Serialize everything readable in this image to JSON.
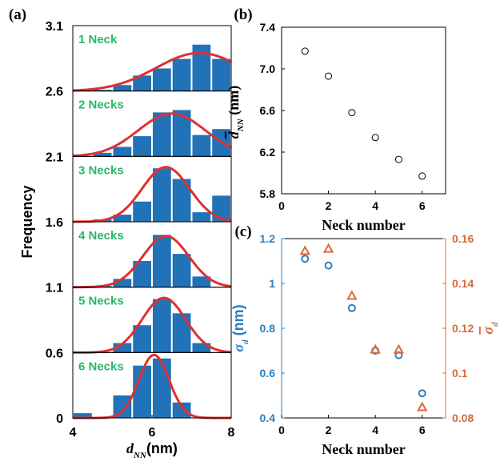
{
  "figure": {
    "panel_labels": [
      "(a)",
      "(b)",
      "(c)"
    ]
  },
  "colors": {
    "bar": "#2272b8",
    "fit": "#e03030",
    "label_green": "#2bb56a",
    "sigma_blue": "#2a7fc1",
    "sigma_orange": "#d8693a",
    "axis": "#000000"
  },
  "chart_data": [
    {
      "panel": "(a)",
      "type": "bar",
      "xlabel_base": "d",
      "xlabel_sub": "NN",
      "xlabel_unit": "(nm)",
      "ylabel": "Frequency",
      "xlim": [
        4,
        8
      ],
      "xticks": [
        "4",
        "6",
        "8"
      ],
      "ytick_labels": [
        "3.1",
        "2.6",
        "2.1",
        "1.6",
        "1.1",
        "0.6",
        "0"
      ],
      "bin_centers": [
        4.25,
        4.75,
        5.25,
        5.75,
        6.25,
        6.75,
        7.25,
        7.75
      ],
      "bin_width": 0.5,
      "subplots": [
        {
          "label": "1 Neck",
          "baseline": 2.6,
          "values": [
            0.0,
            0.01,
            0.05,
            0.13,
            0.19,
            0.27,
            0.39,
            0.27
          ],
          "fit": {
            "mu": 7.2,
            "sigma": 1.1,
            "peak": 0.32
          }
        },
        {
          "label": "2 Necks",
          "baseline": 2.1,
          "values": [
            0.0,
            0.03,
            0.08,
            0.17,
            0.37,
            0.39,
            0.18,
            0.23
          ],
          "fit": {
            "mu": 6.5,
            "sigma": 0.85,
            "peak": 0.36
          }
        },
        {
          "label": "3 Necks",
          "baseline": 1.6,
          "values": [
            0.0,
            0.02,
            0.06,
            0.17,
            0.45,
            0.36,
            0.08,
            0.22
          ],
          "fit": {
            "mu": 6.35,
            "sigma": 0.6,
            "peak": 0.46
          }
        },
        {
          "label": "4 Necks",
          "baseline": 1.1,
          "values": [
            0.0,
            0.01,
            0.07,
            0.22,
            0.44,
            0.28,
            0.09,
            0.0
          ],
          "fit": {
            "mu": 6.35,
            "sigma": 0.58,
            "peak": 0.43
          }
        },
        {
          "label": "5 Necks",
          "baseline": 0.6,
          "values": [
            0.0,
            0.0,
            0.08,
            0.23,
            0.45,
            0.33,
            0.08,
            0.0
          ],
          "fit": {
            "mu": 6.3,
            "sigma": 0.55,
            "peak": 0.46
          }
        },
        {
          "label": "6 Necks",
          "baseline": 0.0,
          "values": [
            0.04,
            0.0,
            0.19,
            0.44,
            0.5,
            0.13,
            0.0,
            0.0
          ],
          "fit": {
            "mu": 6.05,
            "sigma": 0.38,
            "peak": 0.53
          }
        }
      ]
    },
    {
      "panel": "(b)",
      "type": "scatter",
      "xlabel": "Neck number",
      "ylabel_base": "d",
      "ylabel_sub": "NN",
      "ylabel_unit": "(nm)",
      "xlim": [
        0,
        7
      ],
      "ylim": [
        5.8,
        7.4
      ],
      "xticks": [
        "0",
        "2",
        "4",
        "6"
      ],
      "yticks": [
        "5.8",
        "6.2",
        "6.6",
        "7.0",
        "7.4"
      ],
      "x": [
        1,
        2,
        3,
        4,
        5,
        6
      ],
      "y": [
        7.17,
        6.93,
        6.58,
        6.34,
        6.13,
        5.97
      ]
    },
    {
      "panel": "(c)",
      "type": "scatter",
      "xlabel": "Neck number",
      "xlim": [
        0,
        7
      ],
      "xticks": [
        "0",
        "2",
        "4",
        "6"
      ],
      "left_axis": {
        "label_base": "σ",
        "label_sub": "d",
        "label_unit": "(nm)",
        "ylim": [
          0.4,
          1.2
        ],
        "yticks": [
          "0.4",
          "0.6",
          "0.8",
          "1",
          "1.2"
        ]
      },
      "right_axis": {
        "label_base": "σ",
        "label_sub": "d",
        "ylim": [
          0.08,
          0.16
        ],
        "yticks": [
          "0.08",
          "0.1",
          "0.12",
          "0.14",
          "0.16"
        ]
      },
      "series": [
        {
          "axis": "left",
          "marker": "circle",
          "x": [
            1,
            2,
            3,
            4,
            5,
            6
          ],
          "y": [
            1.11,
            1.08,
            0.89,
            0.7,
            0.68,
            0.51
          ]
        },
        {
          "axis": "right",
          "marker": "triangle",
          "x": [
            1,
            2,
            3,
            4,
            5,
            6
          ],
          "y": [
            0.1545,
            0.1555,
            0.1345,
            0.1105,
            0.1105,
            0.0848
          ]
        }
      ]
    }
  ]
}
